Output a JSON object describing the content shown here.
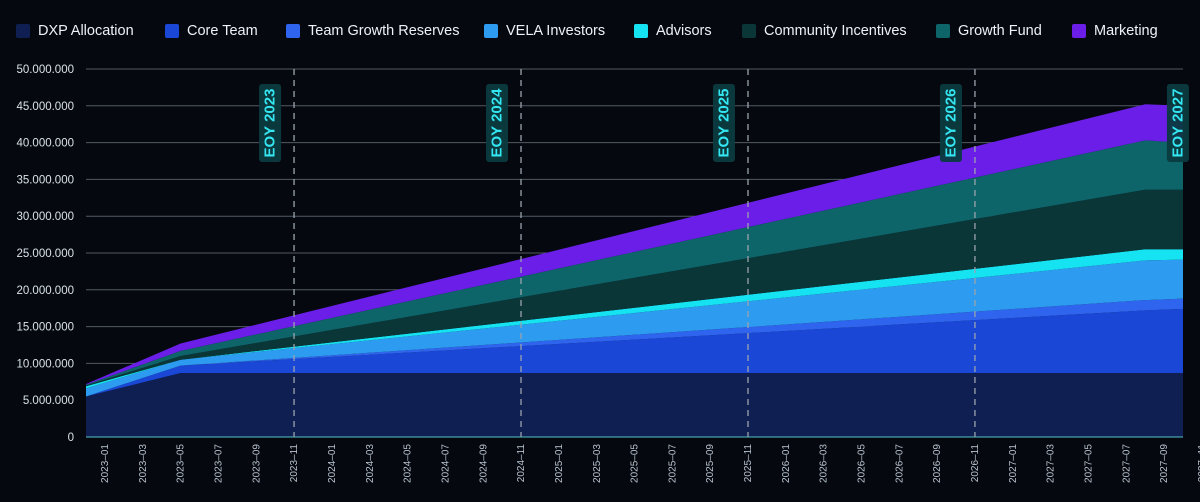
{
  "chart_data": {
    "type": "area",
    "stacked": true,
    "legend_position": "top",
    "x": [
      "2023-01",
      "2023-06",
      "2027-09",
      "2027-11"
    ],
    "series": [
      {
        "name": "DXP Allocation",
        "color": "#0f1f52",
        "values": [
          5500000,
          8700000,
          8700000,
          8700000
        ]
      },
      {
        "name": "Core Team",
        "color": "#1a47d6",
        "values": [
          0,
          1000000,
          8500000,
          8700000
        ]
      },
      {
        "name": "Team Growth Reserves",
        "color": "#2f64ee",
        "values": [
          0,
          0,
          1400000,
          1400000
        ]
      },
      {
        "name": "VELA Investors",
        "color": "#2c9bf0",
        "values": [
          1100000,
          800000,
          5400000,
          5300000
        ]
      },
      {
        "name": "Advisors",
        "color": "#16e3f2",
        "values": [
          300000,
          0,
          1500000,
          1400000
        ]
      },
      {
        "name": "Community Incentives",
        "color": "#0a3638",
        "values": [
          100000,
          500000,
          8100000,
          8100000
        ]
      },
      {
        "name": "Growth Fund",
        "color": "#0d6469",
        "values": [
          100000,
          700000,
          6700000,
          6400000
        ]
      },
      {
        "name": "Marketing",
        "color": "#6a1ee8",
        "values": [
          100000,
          1000000,
          4900000,
          5000000
        ]
      }
    ],
    "ylim": [
      0,
      50000000
    ],
    "y_ticks": [
      "0",
      "5.000.000",
      "10.000.000",
      "15.000.000",
      "20.000.000",
      "25.000.000",
      "30.000.000",
      "35.000.000",
      "40.000.000",
      "45.000.000",
      "50.000.000"
    ],
    "x_ticks": [
      "2023–01",
      "2023–03",
      "2023–05",
      "2023–07",
      "2023–09",
      "2023–11",
      "2024–01",
      "2024–03",
      "2024–05",
      "2024–07",
      "2024–09",
      "2024–11",
      "2025–01",
      "2025–03",
      "2025–05",
      "2025–07",
      "2025–09",
      "2025–11",
      "2026–01",
      "2026–03",
      "2026–05",
      "2026–07",
      "2026–09",
      "2026–11",
      "2027–01",
      "2027–03",
      "2027–05",
      "2027–07",
      "2027–09",
      "2027–11"
    ],
    "annotations": [
      {
        "text": "EOY 2023",
        "x": "2023-12"
      },
      {
        "text": "EOY 2024",
        "x": "2024-12"
      },
      {
        "text": "EOY 2025",
        "x": "2025-12"
      },
      {
        "text": "EOY 2026",
        "x": "2026-12"
      },
      {
        "text": "EOY 2027",
        "x": "2027-12"
      }
    ],
    "grid": "horizontal"
  }
}
